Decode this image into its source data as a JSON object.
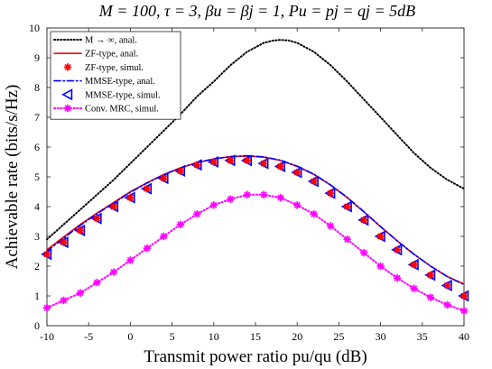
{
  "chart_data": {
    "type": "line",
    "title": "M = 100, τ = 3, βu = βj = 1, Pu = pj = qj = 5dB",
    "xlabel": "Transmit power ratio pu/qu (dB)",
    "ylabel": "Achievable rate (bits/s/Hz)",
    "xlim": [
      -10,
      40
    ],
    "ylim": [
      0,
      10
    ],
    "xticks": [
      "-10",
      "-5",
      "0",
      "5",
      "10",
      "15",
      "20",
      "25",
      "30",
      "35",
      "40"
    ],
    "yticks": [
      "0",
      "1",
      "2",
      "3",
      "4",
      "5",
      "6",
      "7",
      "8",
      "9",
      "10"
    ],
    "grid": true,
    "legend_position": "top-left",
    "series": [
      {
        "name": "M → ∞, anal.",
        "color": "#000000",
        "style": "dotted",
        "marker": "none",
        "x": [
          -10,
          -8,
          -6,
          -4,
          -2,
          0,
          2,
          4,
          6,
          8,
          10,
          12,
          14,
          16,
          17,
          18,
          19,
          20,
          22,
          24,
          26,
          28,
          30,
          32,
          34,
          36,
          38,
          40
        ],
        "y": [
          2.9,
          3.4,
          3.9,
          4.4,
          4.9,
          5.45,
          6.0,
          6.55,
          7.1,
          7.7,
          8.2,
          8.75,
          9.2,
          9.5,
          9.57,
          9.6,
          9.58,
          9.5,
          9.2,
          8.75,
          8.2,
          7.6,
          7.0,
          6.4,
          5.8,
          5.3,
          4.9,
          4.6
        ]
      },
      {
        "name": "ZF-type, anal.",
        "color": "#ff0000",
        "style": "solid",
        "marker": "none",
        "x": [
          -10,
          -8,
          -6,
          -4,
          -2,
          0,
          2,
          4,
          6,
          8,
          10,
          12,
          14,
          16,
          18,
          20,
          22,
          24,
          26,
          28,
          30,
          32,
          34,
          36,
          38,
          40
        ],
        "y": [
          2.55,
          2.98,
          3.4,
          3.78,
          4.14,
          4.5,
          4.8,
          5.08,
          5.3,
          5.48,
          5.6,
          5.68,
          5.7,
          5.66,
          5.55,
          5.35,
          5.08,
          4.72,
          4.3,
          3.82,
          3.32,
          2.85,
          2.4,
          2.0,
          1.65,
          1.4
        ]
      },
      {
        "name": "ZF-type, simul.",
        "color": "#ff0000",
        "style": "none",
        "marker": "asterisk",
        "x": [
          -10,
          -8,
          -6,
          -4,
          -2,
          0,
          2,
          4,
          6,
          8,
          10,
          12,
          14,
          16,
          18,
          20,
          22,
          24,
          26,
          28,
          30,
          32,
          34,
          36,
          38,
          40
        ],
        "y": [
          2.4,
          2.8,
          3.2,
          3.6,
          4.0,
          4.3,
          4.6,
          4.95,
          5.2,
          5.4,
          5.5,
          5.55,
          5.55,
          5.45,
          5.35,
          5.15,
          4.85,
          4.45,
          4.0,
          3.55,
          3.0,
          2.55,
          2.05,
          1.7,
          1.35,
          1.0
        ]
      },
      {
        "name": "MMSE-type, anal.",
        "color": "#0000ff",
        "style": "dashdot",
        "marker": "none",
        "x": [
          -10,
          -8,
          -6,
          -4,
          -2,
          0,
          2,
          4,
          6,
          8,
          10,
          12,
          14,
          16,
          18,
          20,
          22,
          24,
          26,
          28,
          30,
          32,
          34,
          36,
          38,
          40
        ],
        "y": [
          2.5,
          2.94,
          3.37,
          3.76,
          4.12,
          4.48,
          4.79,
          5.07,
          5.3,
          5.48,
          5.6,
          5.68,
          5.71,
          5.67,
          5.56,
          5.36,
          5.09,
          4.73,
          4.31,
          3.83,
          3.33,
          2.85,
          2.4,
          2.0,
          1.65,
          1.38
        ]
      },
      {
        "name": "MMSE-type, simul.",
        "color": "#0000ff",
        "style": "none",
        "marker": "triangle-left",
        "x": [
          -10,
          -8,
          -6,
          -4,
          -2,
          0,
          2,
          4,
          6,
          8,
          10,
          12,
          14,
          16,
          18,
          20,
          22,
          24,
          26,
          28,
          30,
          32,
          34,
          36,
          38,
          40
        ],
        "y": [
          2.4,
          2.8,
          3.2,
          3.6,
          4.0,
          4.3,
          4.6,
          4.95,
          5.2,
          5.4,
          5.5,
          5.55,
          5.55,
          5.45,
          5.35,
          5.15,
          4.85,
          4.45,
          4.0,
          3.55,
          3.0,
          2.55,
          2.05,
          1.7,
          1.35,
          1.0
        ]
      },
      {
        "name": "Conv. MRC, simul.",
        "color": "#ff00ff",
        "style": "dotted",
        "marker": "asterisk",
        "x": [
          -10,
          -8,
          -6,
          -4,
          -2,
          0,
          2,
          4,
          6,
          8,
          10,
          12,
          14,
          16,
          18,
          20,
          22,
          24,
          26,
          28,
          30,
          32,
          34,
          36,
          38,
          40
        ],
        "y": [
          0.6,
          0.85,
          1.1,
          1.45,
          1.8,
          2.2,
          2.6,
          3.0,
          3.4,
          3.75,
          4.05,
          4.25,
          4.4,
          4.4,
          4.3,
          4.05,
          3.75,
          3.35,
          2.9,
          2.45,
          2.0,
          1.6,
          1.25,
          0.95,
          0.7,
          0.5
        ]
      }
    ]
  }
}
